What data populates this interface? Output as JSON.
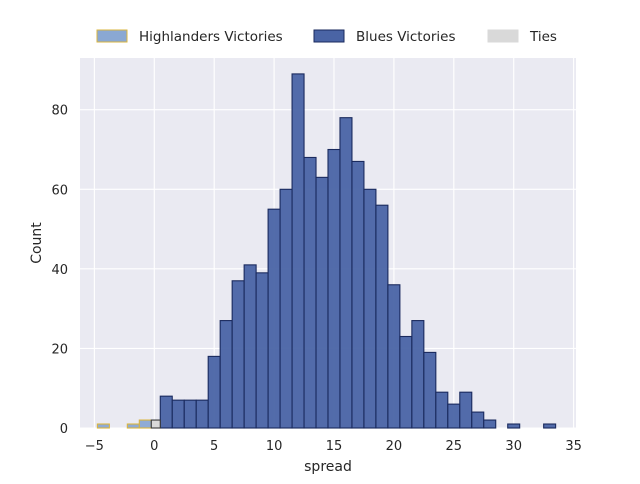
{
  "chart_data": {
    "type": "bar",
    "xlabel": "spread",
    "ylabel": "Count",
    "xlim": [
      -6.2,
      35.2
    ],
    "ylim": [
      0,
      93
    ],
    "xticks": [
      -5,
      0,
      5,
      10,
      15,
      20,
      25,
      30,
      35
    ],
    "yticks": [
      0,
      20,
      40,
      60,
      80
    ],
    "grid": true,
    "legend_position": "top-center",
    "bin_width": 1,
    "series": [
      {
        "name": "Highlanders Victories",
        "fill": "#8aa8d3",
        "edge": "#d9b53f",
        "bins": [
          {
            "x0": -4.75,
            "x1": -3.75,
            "count": 1
          },
          {
            "x0": -2.25,
            "x1": -1.25,
            "count": 1
          },
          {
            "x0": -1.25,
            "x1": -0.25,
            "count": 2
          }
        ]
      },
      {
        "name": "Blues Victories",
        "fill": "#4a64a5",
        "edge": "#1a2a5e",
        "bins": [
          {
            "x0": 0.5,
            "x1": 1.5,
            "count": 8
          },
          {
            "x0": 1.5,
            "x1": 2.5,
            "count": 7
          },
          {
            "x0": 2.5,
            "x1": 3.5,
            "count": 7
          },
          {
            "x0": 3.5,
            "x1": 4.5,
            "count": 7
          },
          {
            "x0": 4.5,
            "x1": 5.5,
            "count": 18
          },
          {
            "x0": 5.5,
            "x1": 6.5,
            "count": 27
          },
          {
            "x0": 6.5,
            "x1": 7.5,
            "count": 37
          },
          {
            "x0": 7.5,
            "x1": 8.5,
            "count": 41
          },
          {
            "x0": 8.5,
            "x1": 9.5,
            "count": 39
          },
          {
            "x0": 9.5,
            "x1": 10.5,
            "count": 55
          },
          {
            "x0": 10.5,
            "x1": 11.5,
            "count": 60
          },
          {
            "x0": 11.5,
            "x1": 12.5,
            "count": 89
          },
          {
            "x0": 12.5,
            "x1": 13.5,
            "count": 68
          },
          {
            "x0": 13.5,
            "x1": 14.5,
            "count": 63
          },
          {
            "x0": 14.5,
            "x1": 15.5,
            "count": 70
          },
          {
            "x0": 15.5,
            "x1": 16.5,
            "count": 78
          },
          {
            "x0": 16.5,
            "x1": 17.5,
            "count": 67
          },
          {
            "x0": 17.5,
            "x1": 18.5,
            "count": 60
          },
          {
            "x0": 18.5,
            "x1": 19.5,
            "count": 56
          },
          {
            "x0": 19.5,
            "x1": 20.5,
            "count": 36
          },
          {
            "x0": 20.5,
            "x1": 21.5,
            "count": 23
          },
          {
            "x0": 21.5,
            "x1": 22.5,
            "count": 27
          },
          {
            "x0": 22.5,
            "x1": 23.5,
            "count": 19
          },
          {
            "x0": 23.5,
            "x1": 24.5,
            "count": 9
          },
          {
            "x0": 24.5,
            "x1": 25.5,
            "count": 6
          },
          {
            "x0": 25.5,
            "x1": 26.5,
            "count": 9
          },
          {
            "x0": 26.5,
            "x1": 27.5,
            "count": 4
          },
          {
            "x0": 27.5,
            "x1": 28.5,
            "count": 2
          },
          {
            "x0": 29.5,
            "x1": 30.5,
            "count": 1
          },
          {
            "x0": 32.5,
            "x1": 33.5,
            "count": 1
          }
        ]
      },
      {
        "name": "Ties",
        "fill": "#d9d9d9",
        "edge": "#3a3a3a",
        "bins": [
          {
            "x0": -0.25,
            "x1": 0.5,
            "count": 2
          }
        ]
      }
    ]
  },
  "colors": {
    "plot_background": "#eaeaf2",
    "grid": "#ffffff"
  }
}
